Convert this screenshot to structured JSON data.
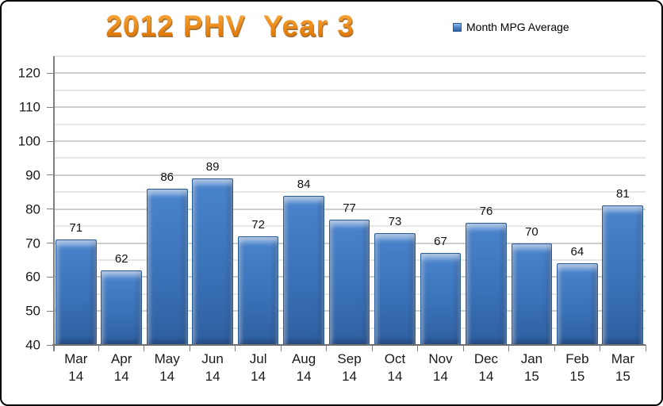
{
  "chart_data": {
    "type": "bar",
    "title": "2012 PHV  Year 3",
    "legend_label": "Month MPG Average",
    "legend_position": "top-right",
    "categories": [
      "Mar 14",
      "Apr 14",
      "May 14",
      "Jun 14",
      "Jul 14",
      "Aug 14",
      "Sep 14",
      "Oct 14",
      "Nov 14",
      "Dec 14",
      "Jan 15",
      "Feb 15",
      "Mar 15"
    ],
    "values": [
      71,
      62,
      86,
      89,
      72,
      84,
      77,
      73,
      67,
      76,
      70,
      64,
      81
    ],
    "xlabel": "",
    "ylabel": "",
    "ylim": [
      40,
      125
    ],
    "y_major": 10,
    "y_minor": 5,
    "y_label_max": 120,
    "grid": true
  },
  "colors": {
    "bar_body_top": "#4A84CC",
    "bar_body_bottom": "#2E5F9F",
    "bar_border": "#2B5C9A",
    "bar_top_highlight": "#7FB2E6",
    "title_gradient_top": "#F9A638",
    "title_gradient_bottom": "#DC7200",
    "title_shadow": "#9E5A10",
    "gridline_major": "#9C9C9C",
    "gridline_minor": "#CFCFCF",
    "axis_line": "#7F7F7F",
    "text": "#1A1A1A"
  }
}
